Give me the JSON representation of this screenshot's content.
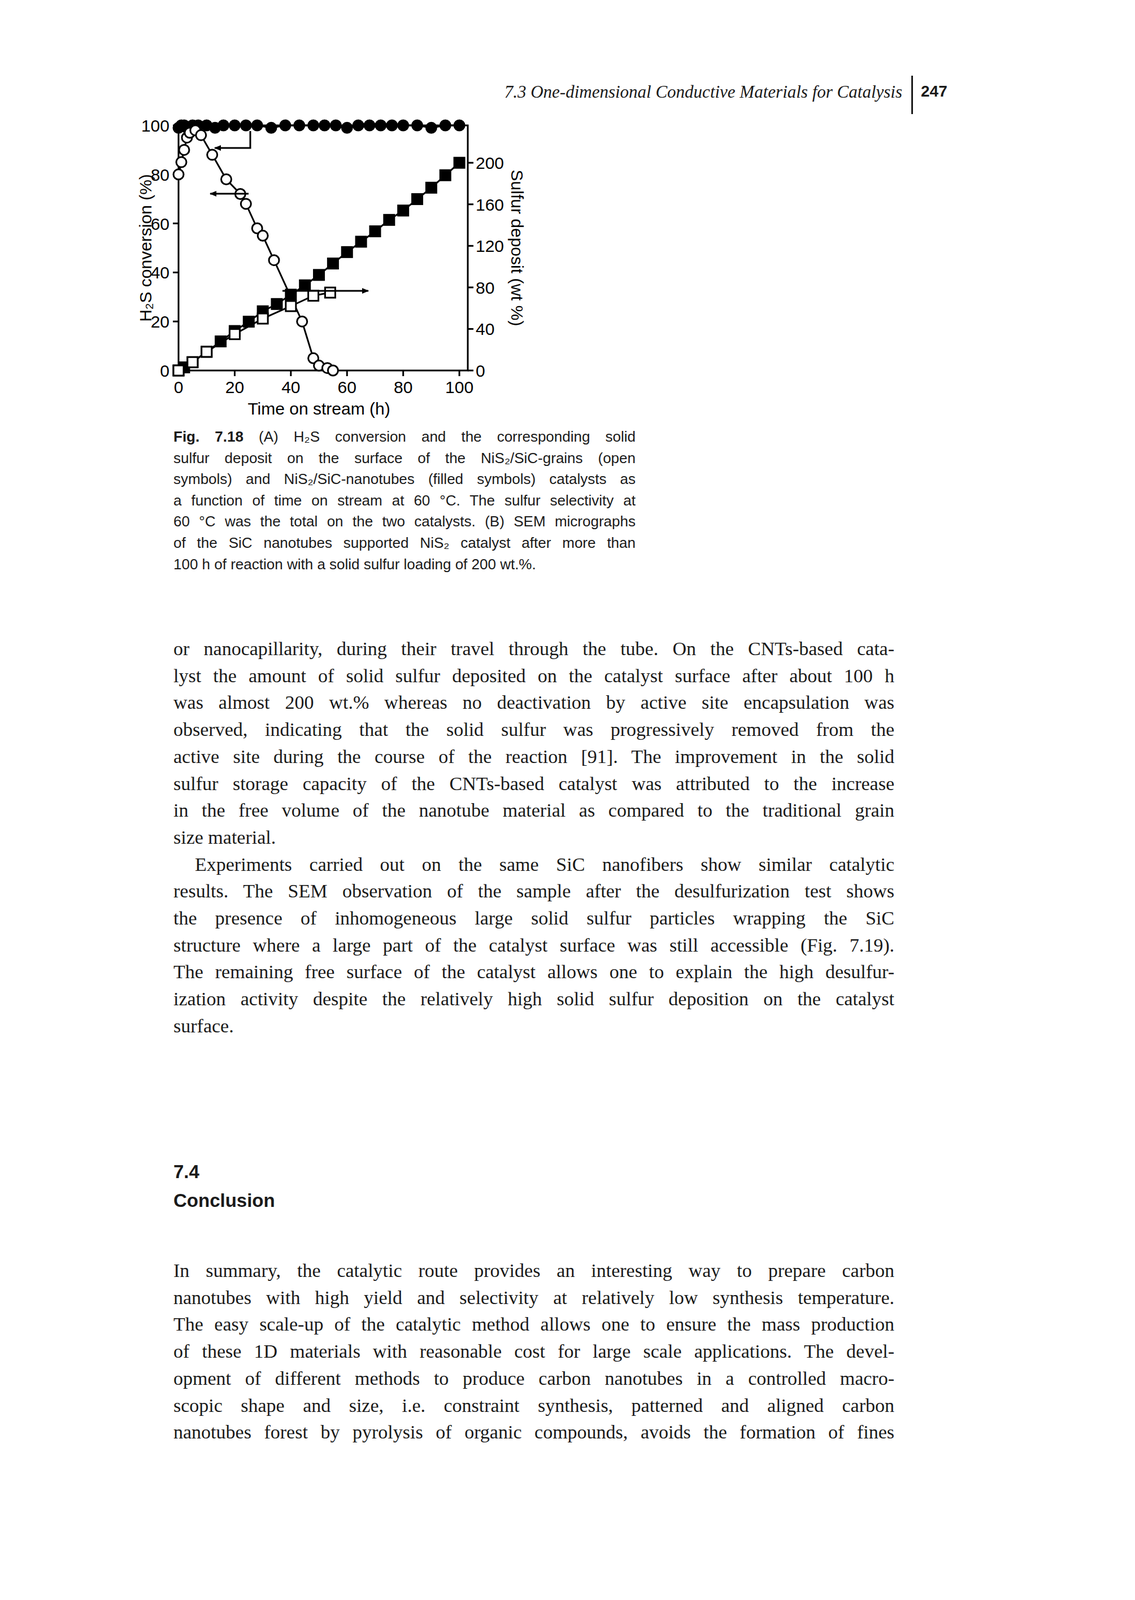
{
  "header": {
    "running_title": "7.3 One-dimensional Conductive Materials for Catalysis",
    "page_number": "247"
  },
  "chart_data": {
    "type": "line",
    "x_label": "Time on stream (h)",
    "y_label": "H₂S conversion (%)",
    "y2_label": "Sulfur deposit (wt %)",
    "xlim": [
      0,
      103
    ],
    "xticks": [
      0,
      20,
      40,
      60,
      80,
      100
    ],
    "ylim": [
      0,
      100
    ],
    "yticks": [
      0,
      20,
      40,
      60,
      80,
      100
    ],
    "y2lim": [
      0,
      236
    ],
    "y2ticks": [
      0,
      40,
      80,
      120,
      160,
      200
    ],
    "grid": false,
    "series": [
      {
        "color": "#000000",
        "marker": "circle",
        "line_style": "solid",
        "x": [
          0,
          1,
          2,
          3,
          5,
          7,
          10,
          13,
          16,
          20,
          24,
          28,
          33,
          38,
          43,
          48,
          52,
          56,
          60,
          64,
          68,
          72,
          76,
          80,
          85,
          90,
          95,
          100
        ],
        "values": [
          99,
          100,
          100,
          99,
          100,
          100,
          100,
          99,
          100,
          100,
          100,
          100,
          99,
          100,
          100,
          100,
          100,
          100,
          99,
          100,
          100,
          100,
          100,
          100,
          100,
          99,
          100,
          100
        ]
      },
      {
        "color": "#000000",
        "marker": "circle-open",
        "line_style": "solid",
        "x": [
          0,
          1,
          2,
          3,
          4,
          6,
          8,
          12,
          17,
          22,
          24,
          28,
          30,
          34,
          44,
          48,
          50,
          53,
          55
        ],
        "values": [
          80,
          85,
          90,
          95,
          97,
          98,
          96,
          88,
          78,
          72,
          68,
          58,
          55,
          45,
          20,
          5,
          2,
          1,
          0
        ]
      },
      {
        "color": "#000000",
        "marker": "square",
        "line_style": "solid",
        "axis": "y2",
        "x": [
          0,
          2,
          5,
          10,
          15,
          20,
          25,
          30,
          35,
          40,
          45,
          50,
          55,
          60,
          65,
          70,
          75,
          80,
          85,
          90,
          95,
          100
        ],
        "values": [
          0,
          3,
          8,
          18,
          28,
          38,
          47,
          57,
          64,
          73,
          82,
          92,
          103,
          114,
          124,
          134,
          145,
          154,
          165,
          176,
          188,
          200
        ]
      },
      {
        "color": "#000000",
        "marker": "square-open",
        "line_style": "solid",
        "axis": "y2",
        "x": [
          0,
          5,
          10,
          20,
          30,
          40,
          48,
          54
        ],
        "values": [
          0,
          8,
          18,
          35,
          50,
          62,
          72,
          75
        ]
      }
    ]
  },
  "caption": {
    "label": "Fig. 7.18",
    "lines": [
      "(A) H₂S conversion and the corresponding solid",
      "sulfur deposit on the surface of the NiS₂/SiC-grains (open",
      "symbols) and NiS₂/SiC-nanotubes (filled symbols) catalysts as",
      "a function of time on stream at 60 °C. The sulfur selectivity at",
      "60 °C was the total on the two catalysts. (B) SEM micrographs",
      "of the SiC nanotubes supported NiS₂ catalyst after more than",
      "100 h of reaction with a solid sulfur loading of 200 wt.%."
    ]
  },
  "body": [
    [
      "or nanocapillarity, during their travel through the tube. On the CNTs-based cata-",
      "lyst the amount of solid sulfur deposited on the catalyst surface after about 100 h",
      "was almost 200 wt.% whereas no deactivation by active site encapsulation was",
      "observed, indicating that the solid sulfur was progressively removed from the",
      "active site during the course of the reaction [91]. The improvement in the solid",
      "sulfur storage capacity of the CNTs-based catalyst was attributed to the increase",
      "in the free volume of the nanotube material as compared to the traditional grain",
      "size material."
    ],
    [
      "Experiments carried out on the same SiC nanofibers show similar catalytic",
      "results. The SEM observation of the sample after the desulfurization test shows",
      "the presence of inhomogeneous large solid sulfur particles wrapping the SiC",
      "structure where a large part of the catalyst surface was still accessible (Fig. 7.19).",
      "The remaining free surface of the catalyst allows one to explain the high desulfur-",
      "ization activity despite the relatively high solid sulfur deposition on the catalyst",
      "surface."
    ]
  ],
  "section": {
    "number": "7.4",
    "title": "Conclusion"
  },
  "body_after": [
    [
      "In summary, the catalytic route provides an interesting way to prepare carbon",
      "nanotubes with high yield and selectivity at relatively low synthesis temperature.",
      "The easy scale-up of the catalytic method allows one to ensure the mass production",
      "of these 1D materials with reasonable cost for large scale applications. The devel-",
      "opment of different methods to produce carbon nanotubes in a controlled macro-",
      "scopic shape and size, i.e. constraint synthesis, patterned and aligned carbon",
      "nanotubes forest by pyrolysis of organic compounds, avoids the formation of fines"
    ]
  ]
}
